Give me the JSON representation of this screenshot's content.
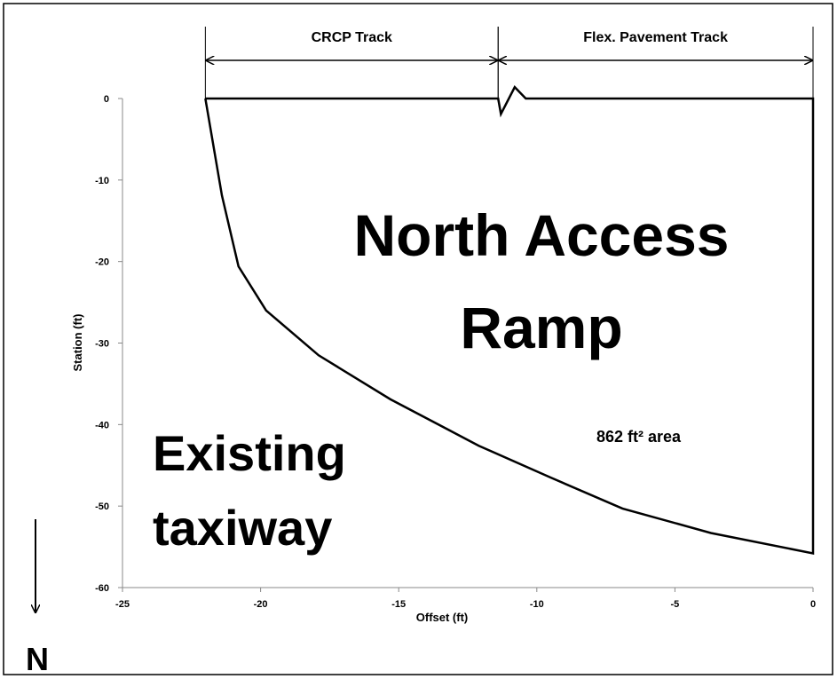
{
  "chart_data": {
    "type": "line",
    "x_label": "Offset (ft)",
    "y_label": "Station (ft)",
    "xlim": [
      -25,
      0
    ],
    "ylim": [
      -60,
      0
    ],
    "xticks": [
      -25,
      -20,
      -15,
      -10,
      -5,
      0
    ],
    "yticks": [
      0,
      -10,
      -20,
      -30,
      -40,
      -50,
      -60
    ],
    "series": [
      {
        "color": "#000000",
        "x": [
          -22,
          -11.4,
          -11.3,
          -10.8,
          -10.4,
          0,
          0,
          -3.7,
          -6.9,
          -9.5,
          -12.1,
          -15.3,
          -17.9,
          -19.8,
          -20.8,
          -21.4,
          -22
        ],
        "values": [
          0,
          0,
          -1.9,
          1.4,
          0,
          0,
          -55.8,
          -53.3,
          -50.3,
          -46.5,
          -42.6,
          -36.9,
          -31.5,
          -26,
          -20.6,
          -11.9,
          0
        ]
      }
    ],
    "spans": [
      {
        "label": "CRCP Track",
        "x": [
          -22,
          -11.4
        ]
      },
      {
        "label": "Flex. Pavement Track",
        "x": [
          -11.4,
          0
        ]
      }
    ],
    "annotations": [
      {
        "lines": [
          "North Access",
          "Ramp"
        ]
      },
      {
        "lines": [
          "Existing",
          "taxiway"
        ]
      },
      {
        "lines": [
          "862 ft² area"
        ]
      },
      {
        "lines": [
          "N"
        ]
      }
    ]
  }
}
